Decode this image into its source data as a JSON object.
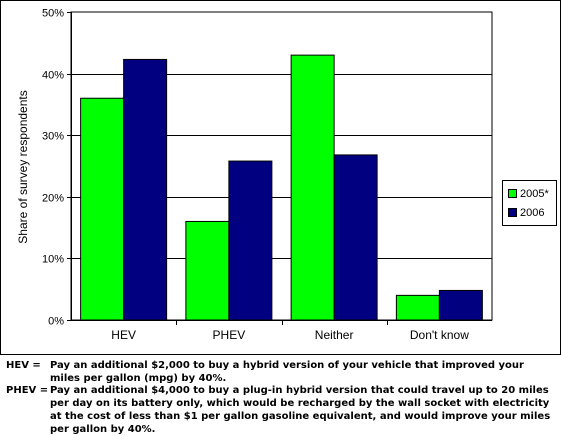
{
  "chart_data": {
    "type": "bar",
    "categories": [
      "HEV",
      "PHEV",
      "Neither",
      "Don't know"
    ],
    "series": [
      {
        "name": "2005*",
        "color": "#00ff00",
        "values": [
          36,
          16,
          43,
          4
        ]
      },
      {
        "name": "2006",
        "color": "#000080",
        "values": [
          42.3,
          25.8,
          26.8,
          4.8
        ]
      }
    ],
    "ylabel": "Share of survey respondents",
    "ylim": [
      0,
      50
    ],
    "yticks": [
      "0%",
      "10%",
      "20%",
      "30%",
      "40%",
      "50%"
    ],
    "grid": true,
    "legend_position": "right",
    "plot_background": "#ffffff"
  },
  "footnotes": [
    {
      "term": "HEV =",
      "text": "Pay an additional $2,000 to buy a hybrid version of your vehicle that improved your miles per gallon (mpg) by 40%."
    },
    {
      "term": "PHEV =",
      "text": "Pay an additional $4,000 to buy a plug-in hybrid version that could travel up to 20 miles per day on its battery only, which would be recharged by the wall socket with electricity at the cost of less than $1 per gallon gasoline equivalent, and would improve your miles per gallon by 40%."
    }
  ]
}
